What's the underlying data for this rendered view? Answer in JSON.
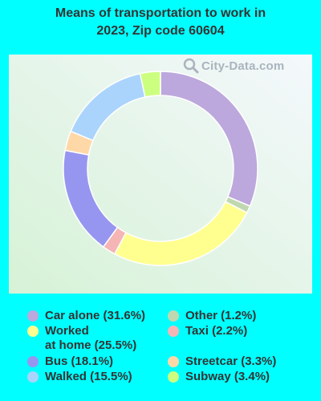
{
  "page": {
    "title_line1": "Means of transportation to work in",
    "title_line2": "2023, Zip code 60604",
    "watermark": "City-Data.com"
  },
  "colors": {
    "background": "#00FFFF",
    "panel_gradient": [
      "#D6F2D6",
      "#F4F8FC"
    ]
  },
  "chart_data": {
    "type": "pie",
    "variant": "donut",
    "title": "Means of transportation to work in 2023, Zip code 60604",
    "legend_position": "bottom",
    "slices": [
      {
        "name": "Car alone",
        "value": 31.6,
        "label": "Car alone (31.6%)",
        "color": "#BCA8DC"
      },
      {
        "name": "Other",
        "value": 1.2,
        "label": "Other (1.2%)",
        "color": "#C0D8B0"
      },
      {
        "name": "Worked at home",
        "value": 25.5,
        "label_line1": "Worked",
        "label_line2": "at home (25.5%)",
        "color": "#FFFF90"
      },
      {
        "name": "Taxi",
        "value": 2.2,
        "label": "Taxi (2.2%)",
        "color": "#F5B5B5"
      },
      {
        "name": "Bus",
        "value": 18.1,
        "label": "Bus (18.1%)",
        "color": "#9696F0"
      },
      {
        "name": "Streetcar",
        "value": 3.3,
        "label": "Streetcar (3.3%)",
        "color": "#FFD8A8"
      },
      {
        "name": "Walked",
        "value": 15.5,
        "label": "Walked (15.5%)",
        "color": "#AAD4FC"
      },
      {
        "name": "Subway",
        "value": 3.4,
        "label": "Subway (3.4%)",
        "color": "#CCFF80"
      }
    ]
  }
}
